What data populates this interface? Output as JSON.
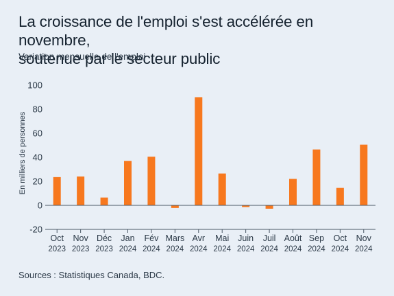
{
  "title_line1": "La croissance de l'emploi s'est accélérée en novembre,",
  "title_line2": "soutenue par le secteur public",
  "subtitle": "Variation mensuelle de l'emploi",
  "source": "Sources : Statistiques Canada, BDC.",
  "colors": {
    "bar": "#f7781e",
    "background": "#e9eff6",
    "axis": "#4a5866"
  },
  "chart_data": {
    "type": "bar",
    "ylabel": "En milliers de personnes",
    "ylim": [
      -20,
      100
    ],
    "yticks": [
      -20,
      0,
      20,
      40,
      60,
      80,
      100
    ],
    "categories": [
      {
        "month": "Oct",
        "year": "2023"
      },
      {
        "month": "Nov",
        "year": "2023"
      },
      {
        "month": "Déc",
        "year": "2023"
      },
      {
        "month": "Jan",
        "year": "2024"
      },
      {
        "month": "Fév",
        "year": "2024"
      },
      {
        "month": "Mars",
        "year": "2024"
      },
      {
        "month": "Avr",
        "year": "2024"
      },
      {
        "month": "Mai",
        "year": "2024"
      },
      {
        "month": "Juin",
        "year": "2024"
      },
      {
        "month": "Juil",
        "year": "2024"
      },
      {
        "month": "Août",
        "year": "2024"
      },
      {
        "month": "Sep",
        "year": "2024"
      },
      {
        "month": "Oct",
        "year": "2024"
      },
      {
        "month": "Nov",
        "year": "2024"
      }
    ],
    "values": [
      23.5,
      24,
      6.5,
      37,
      40.5,
      -2.2,
      90,
      26.5,
      -1.4,
      -2.8,
      22,
      46.5,
      14.5,
      50.5
    ],
    "grid": false
  }
}
